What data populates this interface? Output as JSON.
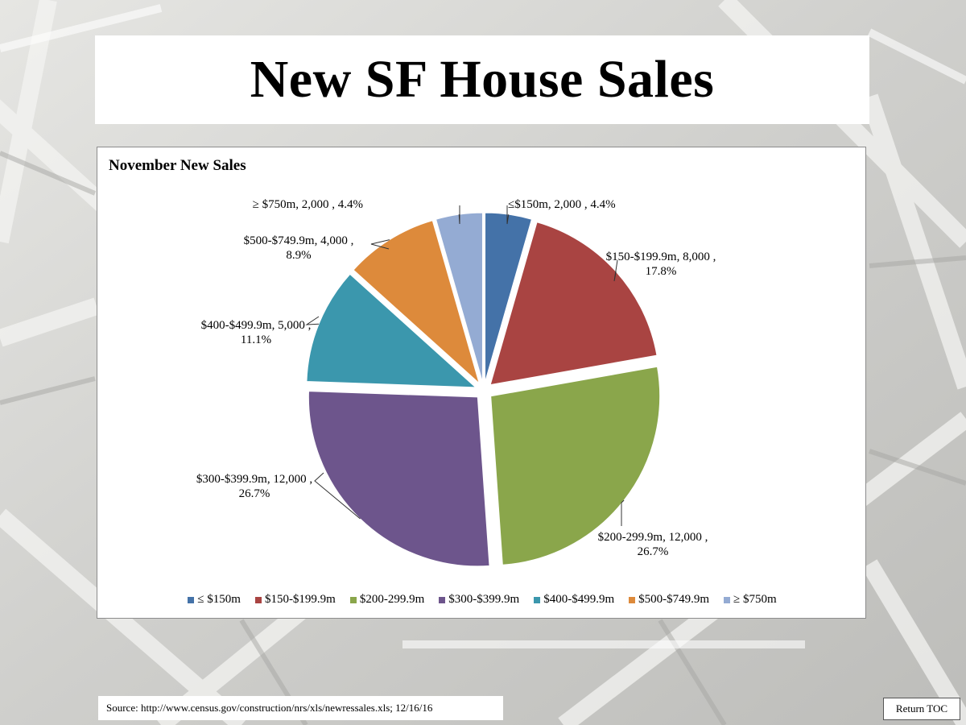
{
  "page": {
    "title": "New SF House Sales"
  },
  "footer": {
    "source": "Source: http://www.census.gov/construction/nrs/xls/newressales.xls; 12/16/16",
    "return_toc": "Return TOC"
  },
  "colors": {
    "background": "#d9d9d6",
    "panel": "#ffffff"
  },
  "chart_data": {
    "type": "pie",
    "title": "November New Sales",
    "exploded": true,
    "legend_position": "bottom",
    "slices": [
      {
        "label": "≤ $150m",
        "value": 2000,
        "percent": 4.4,
        "color": "#4472a8",
        "legend": "≤ $150m",
        "data_label": [
          "≤$150m, 2,000 , 4.4%"
        ]
      },
      {
        "label": "$150-$199.9m",
        "value": 8000,
        "percent": 17.8,
        "color": "#a94442",
        "legend": "$150-$199.9m",
        "data_label": [
          "$150-$199.9m, 8,000 ,",
          "17.8%"
        ]
      },
      {
        "label": "$200-299.9m",
        "value": 12000,
        "percent": 26.7,
        "color": "#8aa64b",
        "legend": "$200-299.9m",
        "data_label": [
          "$200-299.9m, 12,000 ,",
          "26.7%"
        ]
      },
      {
        "label": "$300-$399.9m",
        "value": 12000,
        "percent": 26.7,
        "color": "#6d558c",
        "legend": "$300-$399.9m",
        "data_label": [
          "$300-$399.9m, 12,000 ,",
          "26.7%"
        ]
      },
      {
        "label": "$400-$499.9m",
        "value": 5000,
        "percent": 11.1,
        "color": "#3b97ad",
        "legend": "$400-$499.9m",
        "data_label": [
          "$400-$499.9m, 5,000 ,",
          "11.1%"
        ]
      },
      {
        "label": "$500-$749.9m",
        "value": 4000,
        "percent": 8.9,
        "color": "#dd8a3b",
        "legend": "$500-$749.9m",
        "data_label": [
          "$500-$749.9m, 4,000 ,",
          "8.9%"
        ]
      },
      {
        "label": "≥ $750m",
        "value": 2000,
        "percent": 4.4,
        "color": "#94abd3",
        "legend": "≥ $750m",
        "data_label": [
          "≥ $750m, 2,000 , 4.4%"
        ]
      }
    ]
  }
}
